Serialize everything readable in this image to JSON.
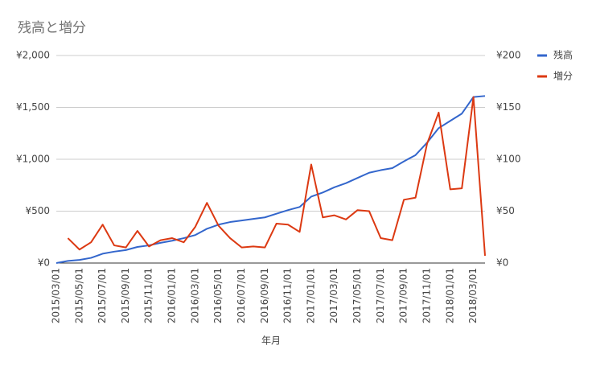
{
  "chart_data": {
    "type": "line",
    "title": "残高と増分",
    "x_label": "年月",
    "categories": [
      "2015/03/01",
      null,
      "2015/05/01",
      null,
      "2015/07/01",
      null,
      "2015/09/01",
      null,
      "2015/11/01",
      null,
      "2016/01/01",
      null,
      "2016/03/01",
      null,
      "2016/05/01",
      null,
      "2016/07/01",
      null,
      "2016/09/01",
      null,
      "2016/11/01",
      null,
      "2017/01/01",
      null,
      "2017/03/01",
      null,
      "2017/05/01",
      null,
      "2017/07/01",
      null,
      "2017/09/01",
      null,
      "2017/11/01",
      null,
      "2018/01/01",
      null,
      "2018/03/01",
      null
    ],
    "series": [
      {
        "name": "残高",
        "color": "#3366cc",
        "values": [
          0,
          20,
          30,
          50,
          90,
          110,
          125,
          155,
          170,
          195,
          215,
          240,
          270,
          330,
          370,
          395,
          410,
          425,
          440,
          475,
          510,
          540,
          640,
          680,
          730,
          770,
          820,
          870,
          895,
          915,
          980,
          1040,
          1160,
          1300,
          1370,
          1440,
          1600,
          1610
        ]
      },
      {
        "name": "増分",
        "color": "#dc3912",
        "axis": "y2",
        "values": [
          null,
          24,
          13,
          20,
          37,
          17,
          15,
          31,
          16,
          22,
          24,
          20,
          35,
          58,
          36,
          24,
          15,
          16,
          15,
          38,
          37,
          30,
          95,
          44,
          46,
          42,
          51,
          50,
          24,
          22,
          61,
          63,
          115,
          145,
          71,
          72,
          160,
          7
        ]
      }
    ],
    "ylim": [
      0,
      2000
    ],
    "yticks": [
      {
        "value": 0,
        "label": "¥0"
      },
      {
        "value": 500,
        "label": "¥500"
      },
      {
        "value": 1000,
        "label": "¥1,000"
      },
      {
        "value": 1500,
        "label": "¥1,500"
      },
      {
        "value": 2000,
        "label": "¥2,000"
      }
    ],
    "y2lim": [
      0,
      200
    ],
    "y2ticks": [
      {
        "value": 0,
        "label": "¥0"
      },
      {
        "value": 50,
        "label": "¥50"
      },
      {
        "value": 100,
        "label": "¥100"
      },
      {
        "value": 150,
        "label": "¥150"
      },
      {
        "value": 200,
        "label": "¥200"
      }
    ],
    "grid": true,
    "legend": "right"
  }
}
